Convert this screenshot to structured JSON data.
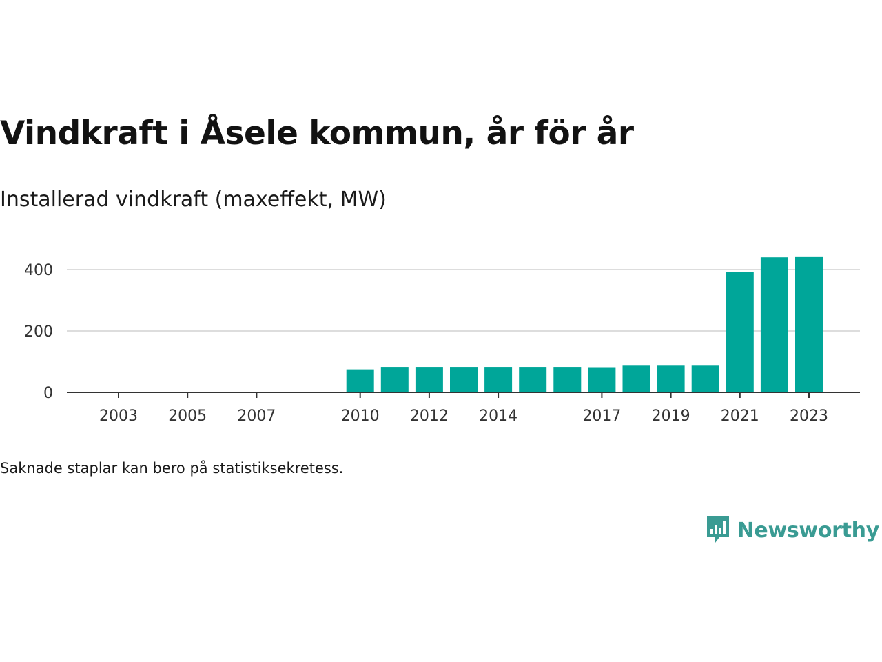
{
  "title": "Vindkraft i Åsele kommun, år för år",
  "subtitle": "Installerad vindkraft (maxeffekt, MW)",
  "note": "Saknade staplar kan bero på statistiksekretess.",
  "logo": {
    "text": "Newsworthy",
    "icon": "newsworthy-logo-icon",
    "color": "#3a9b93"
  },
  "chart_data": {
    "type": "bar",
    "categories": [
      "2003",
      "2004",
      "2005",
      "2006",
      "2007",
      "2008",
      "2009",
      "2010",
      "2011",
      "2012",
      "2013",
      "2014",
      "2015",
      "2016",
      "2017",
      "2018",
      "2019",
      "2020",
      "2021",
      "2022",
      "2023"
    ],
    "values": [
      0,
      0,
      0,
      0,
      0,
      0,
      0,
      75,
      83,
      83,
      83,
      83,
      83,
      83,
      82,
      87,
      87,
      87,
      393,
      440,
      443
    ],
    "x_tick_labels": [
      "2003",
      "2005",
      "2007",
      "2010",
      "2012",
      "2014",
      "2017",
      "2019",
      "2021",
      "2023"
    ],
    "y_ticks": [
      0,
      200,
      400
    ],
    "ylim": [
      0,
      450
    ],
    "title": "Vindkraft i Åsele kommun, år för år",
    "xlabel": "",
    "ylabel": "",
    "grid": true,
    "bar_color": "#00a699"
  }
}
